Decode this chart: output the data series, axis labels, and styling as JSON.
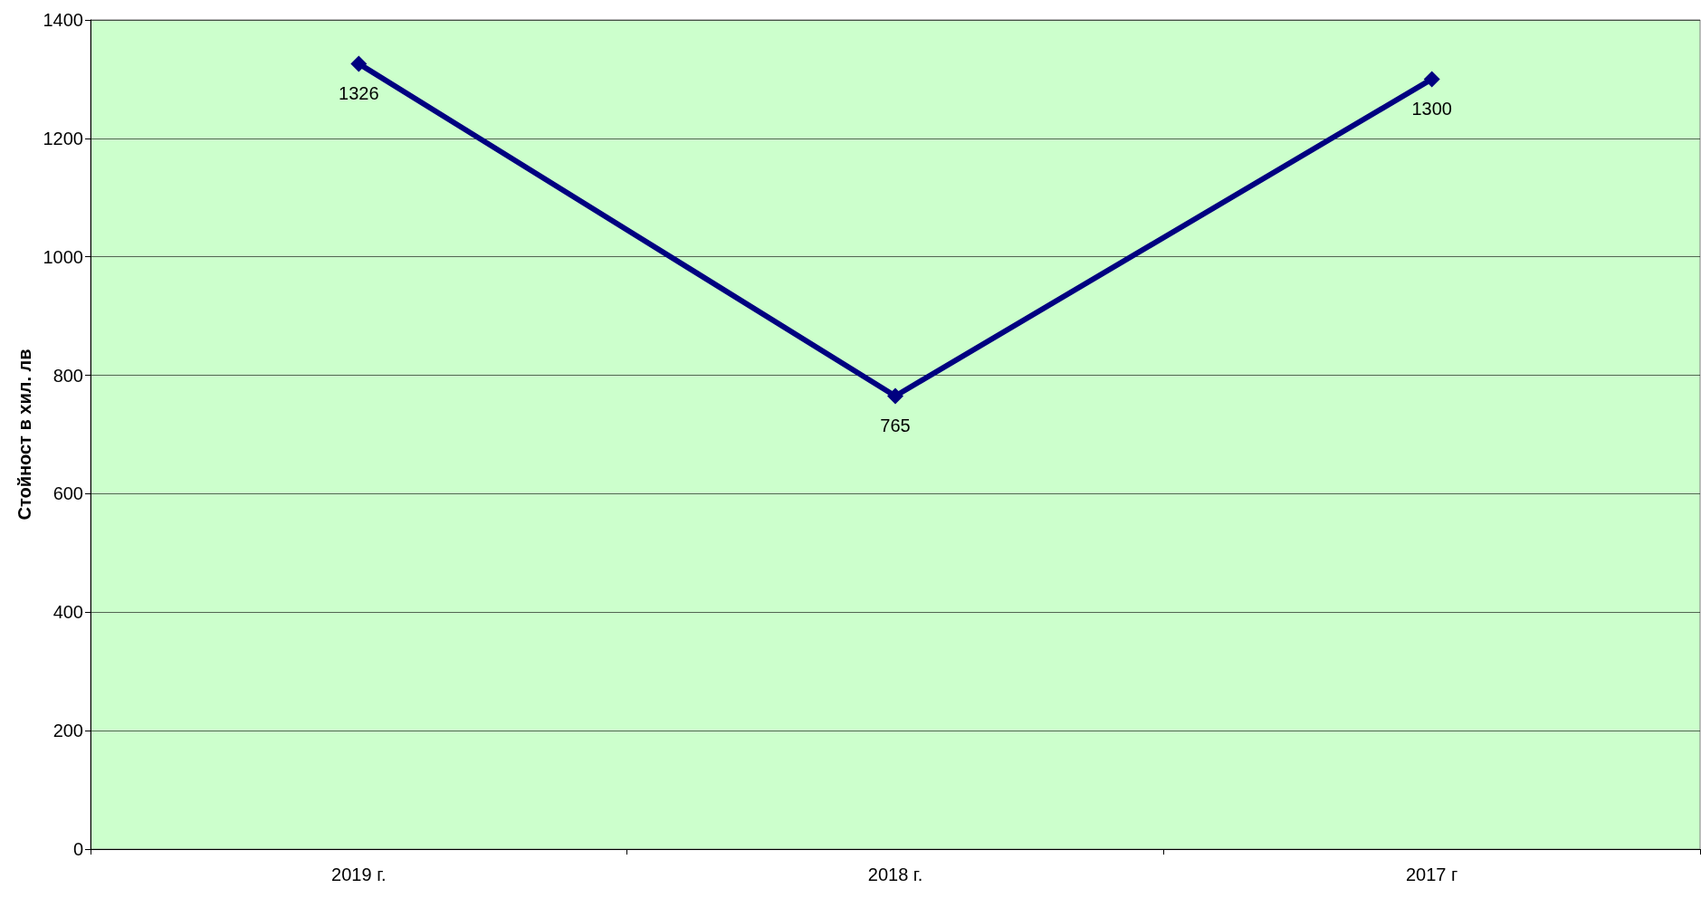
{
  "chart_data": {
    "type": "line",
    "ylabel": "Стойност в хил. лв",
    "categories": [
      "2019 г.",
      "2018 г.",
      "2017 г"
    ],
    "series": [
      {
        "color": "#000080",
        "values": [
          1326,
          765,
          1300
        ]
      }
    ],
    "ylim": [
      0,
      1400
    ],
    "yticks": [
      0,
      200,
      400,
      600,
      800,
      1000,
      1200,
      1400
    ],
    "grid": "y",
    "marker": "diamond",
    "line_style": "solid",
    "data_labels": true
  }
}
